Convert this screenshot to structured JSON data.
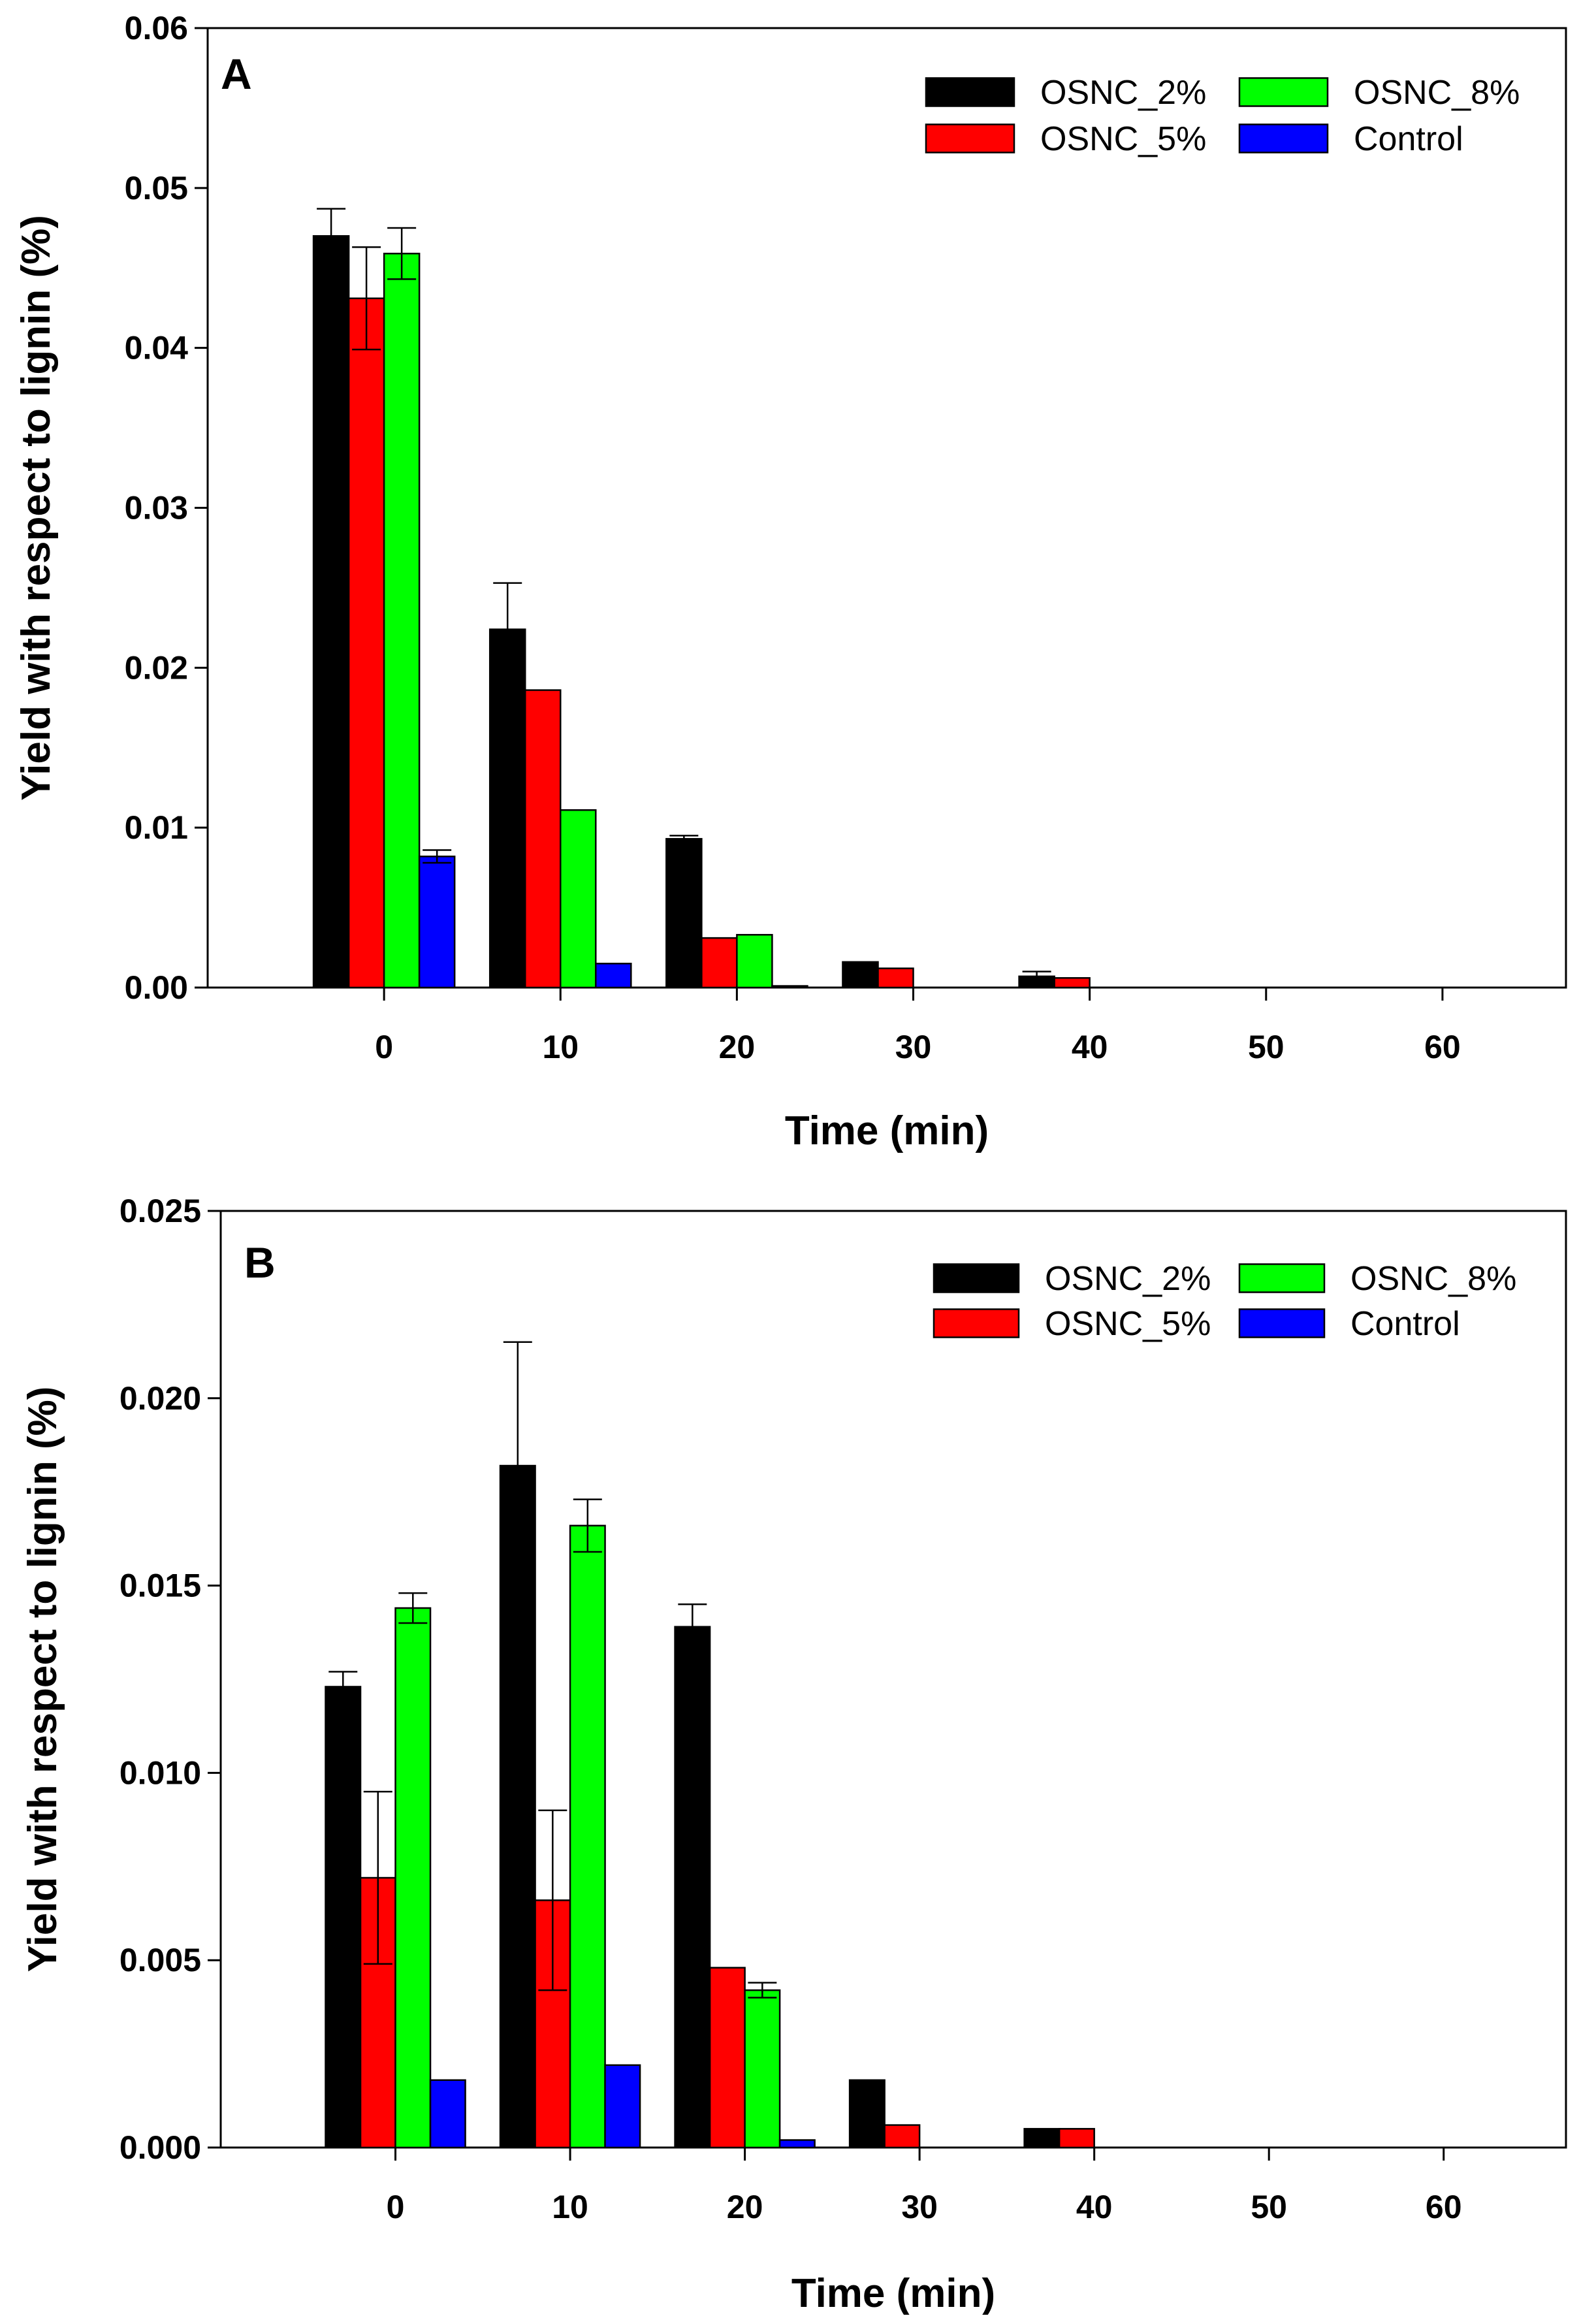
{
  "chart_data": [
    {
      "type": "bar",
      "panel_label": "A",
      "title": "",
      "xlabel": "Time (min)",
      "ylabel": "Yield with respect to lignin (%)",
      "categories": [
        "0",
        "10",
        "20",
        "30",
        "40",
        "50",
        "60"
      ],
      "xlim": [
        -10,
        67
      ],
      "ylim": [
        0,
        0.06
      ],
      "yticks": [
        "0.00",
        "0.01",
        "0.02",
        "0.03",
        "0.04",
        "0.05",
        "0.06"
      ],
      "grid": false,
      "legend": {
        "placement": "top-right",
        "columns": 2
      },
      "series": [
        {
          "name": "OSNC_2%",
          "color": "#000000",
          "values": [
            0.047,
            0.0224,
            0.0093,
            0.0016,
            0.0007,
            0,
            0
          ],
          "errors": [
            0.0017,
            0.0029,
            0.0002,
            0,
            0.0003,
            0,
            0
          ]
        },
        {
          "name": "OSNC_5%",
          "color": "#ff0000",
          "values": [
            0.0431,
            0.0186,
            0.0031,
            0.0012,
            0.0006,
            0,
            0
          ],
          "errors": [
            0.0032,
            0,
            0,
            0,
            0,
            0,
            0
          ]
        },
        {
          "name": "OSNC_8%",
          "color": "#00ff00",
          "values": [
            0.0459,
            0.0111,
            0.0033,
            0,
            0,
            0,
            0
          ],
          "errors": [
            0.0016,
            0,
            0,
            0,
            0,
            0,
            0
          ]
        },
        {
          "name": "Control",
          "color": "#0000ff",
          "values": [
            0.0082,
            0.0015,
            0.0001,
            0,
            0,
            0,
            0
          ],
          "errors": [
            0.0004,
            0,
            0,
            0,
            0,
            0,
            0
          ]
        }
      ]
    },
    {
      "type": "bar",
      "panel_label": "B",
      "title": "",
      "xlabel": "Time (min)",
      "ylabel": "Yield with respect to lignin (%)",
      "categories": [
        "0",
        "10",
        "20",
        "30",
        "40",
        "50",
        "60"
      ],
      "xlim": [
        -10,
        67
      ],
      "ylim": [
        0,
        0.025
      ],
      "yticks": [
        "0.000",
        "0.005",
        "0.010",
        "0.015",
        "0.020",
        "0.025"
      ],
      "grid": false,
      "legend": {
        "placement": "top-right",
        "columns": 2
      },
      "series": [
        {
          "name": "OSNC_2%",
          "color": "#000000",
          "values": [
            0.0123,
            0.0182,
            0.0139,
            0.0018,
            0.0005,
            0,
            0
          ],
          "errors": [
            0.0004,
            0.0033,
            0.0006,
            0,
            0,
            0,
            0
          ]
        },
        {
          "name": "OSNC_5%",
          "color": "#ff0000",
          "values": [
            0.0072,
            0.0066,
            0.0048,
            0.0006,
            0.0005,
            0,
            0
          ],
          "errors": [
            0.0023,
            0.0024,
            0,
            0,
            0,
            0,
            0
          ]
        },
        {
          "name": "OSNC_8%",
          "color": "#00ff00",
          "values": [
            0.0144,
            0.0166,
            0.0042,
            0,
            0,
            0,
            0
          ],
          "errors": [
            0.0004,
            0.0007,
            0.0002,
            0,
            0,
            0,
            0
          ]
        },
        {
          "name": "Control",
          "color": "#0000ff",
          "values": [
            0.0018,
            0.0022,
            0.0002,
            0,
            0,
            0,
            0
          ],
          "errors": [
            0,
            0,
            0,
            0,
            0,
            0,
            0
          ]
        }
      ]
    }
  ]
}
